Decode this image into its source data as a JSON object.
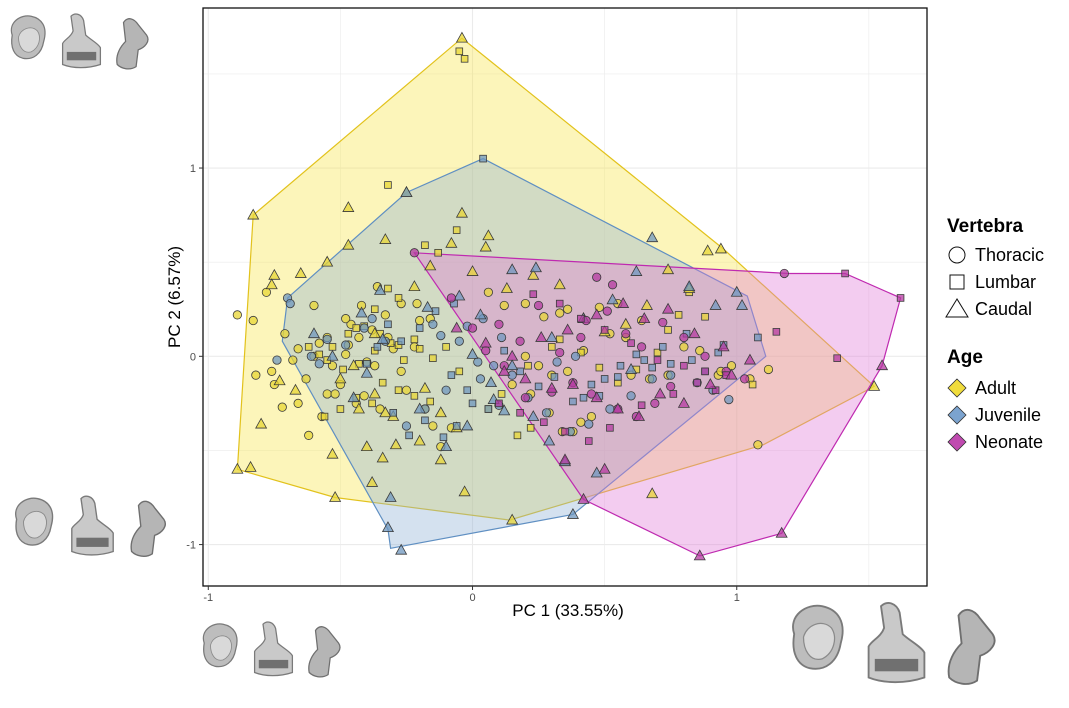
{
  "chart_data": {
    "type": "scatter",
    "xlabel": "PC 1 (33.55%)",
    "ylabel": "PC 2 (6.57%)",
    "xlim": [
      -1.02,
      1.72
    ],
    "ylim": [
      -1.22,
      1.85
    ],
    "x_ticks": [
      {
        "value": -1,
        "label": "-1"
      },
      {
        "value": 0,
        "label": "0"
      },
      {
        "value": 1,
        "label": "1"
      }
    ],
    "y_ticks": [
      {
        "value": -1,
        "label": "-1"
      },
      {
        "value": 0,
        "label": "0"
      },
      {
        "value": 1,
        "label": "1"
      }
    ],
    "grid": true,
    "legend_position": "right",
    "legends": [
      {
        "title": "Vertebra",
        "entries": [
          {
            "label": "Thoracic",
            "shape": "circle"
          },
          {
            "label": "Lumbar",
            "shape": "square"
          },
          {
            "label": "Caudal",
            "shape": "triangle"
          }
        ]
      },
      {
        "title": "Age",
        "entries": [
          {
            "label": "Adult",
            "shape": "diamond",
            "color": "#f0dc3c"
          },
          {
            "label": "Juvenile",
            "shape": "diamond",
            "color": "#7ba3cf"
          },
          {
            "label": "Neonate",
            "shape": "diamond",
            "color": "#c04ab0"
          }
        ]
      }
    ],
    "colors": {
      "Adult": {
        "fill": "#e8d534",
        "hull": "#f7e64a",
        "stroke": "#e2c21c"
      },
      "Juvenile": {
        "fill": "#6f97bf",
        "hull": "#8fb1d4",
        "stroke": "#5f8fc2"
      },
      "Neonate": {
        "fill": "#b43aa0",
        "hull": "#e07ad8",
        "stroke": "#bf2ab0"
      }
    },
    "hulls": {
      "Adult": [
        [
          -0.89,
          -0.6
        ],
        [
          -0.83,
          0.75
        ],
        [
          -0.04,
          1.69
        ],
        [
          0.95,
          0.57
        ],
        [
          1.52,
          -0.16
        ],
        [
          1.1,
          -0.47
        ],
        [
          0.14,
          -0.87
        ],
        [
          -0.52,
          -0.75
        ]
      ],
      "Juvenile": [
        [
          -0.31,
          -1.02
        ],
        [
          0.38,
          -0.84
        ],
        [
          1.11,
          0
        ],
        [
          1.04,
          0.32
        ],
        [
          0.04,
          1.05
        ],
        [
          -0.25,
          0.87
        ],
        [
          -0.7,
          0.31
        ],
        [
          -0.72,
          0.08
        ],
        [
          -0.32,
          -0.92
        ]
      ],
      "Neonate": [
        [
          -0.22,
          0.55
        ],
        [
          1.2,
          0.44
        ],
        [
          1.41,
          0.44
        ],
        [
          1.62,
          0.31
        ],
        [
          1.55,
          -0.05
        ],
        [
          1.17,
          -0.94
        ],
        [
          0.86,
          -1.06
        ],
        [
          0.42,
          -0.76
        ]
      ]
    },
    "series": [
      {
        "name": "Adult",
        "shape": "circle",
        "x": [
          -0.89,
          -0.83,
          -0.76,
          -0.82,
          -0.71,
          -0.75,
          -0.66,
          -0.58,
          -0.63,
          -0.55,
          -0.48,
          -0.52,
          -0.43,
          -0.47,
          -0.41,
          -0.37,
          -0.35,
          -0.3,
          -0.25,
          -0.22,
          -0.18,
          -0.15,
          -0.12,
          -0.08,
          -0.62,
          -0.57,
          -0.5,
          -0.44,
          -0.38,
          -0.33,
          -0.27,
          -0.2,
          -0.16,
          -0.66,
          -0.6,
          -0.53,
          -0.46,
          -0.4,
          -0.32,
          -0.27,
          -0.21,
          -0.72,
          -0.68,
          -0.6,
          -0.55,
          -0.48,
          -0.42,
          -0.36,
          -0.78,
          0.06,
          0.12,
          0.2,
          0.25,
          0.3,
          0.36,
          0.42,
          0.48,
          0.55,
          0.6,
          0.67,
          0.74,
          0.8,
          0.86,
          0.93,
          0.98,
          1.05,
          1.12,
          1.08,
          0.94,
          0.15,
          0.22,
          0.29,
          0.34,
          0.41,
          0.38,
          0.45,
          0.52,
          0.58,
          0.64,
          0.33,
          0.27,
          0.2,
          0.36
        ],
        "y": [
          0.22,
          0.19,
          -0.08,
          -0.1,
          0.12,
          -0.15,
          -0.25,
          0.07,
          -0.12,
          -0.2,
          0.01,
          -0.2,
          0.1,
          0.06,
          -0.21,
          -0.05,
          -0.28,
          0.04,
          -0.18,
          0.05,
          -0.28,
          -0.37,
          -0.48,
          -0.38,
          -0.42,
          -0.32,
          -0.15,
          -0.25,
          0.14,
          0.22,
          0.28,
          0.19,
          0.2,
          0.04,
          0.0,
          -0.05,
          0.17,
          -0.03,
          0.1,
          -0.08,
          0.28,
          -0.27,
          -0.02,
          0.27,
          0.1,
          0.2,
          0.27,
          0.37,
          0.34,
          0.34,
          0.27,
          0.0,
          -0.05,
          -0.1,
          -0.08,
          0.03,
          0.26,
          0.28,
          -0.1,
          -0.12,
          -0.1,
          0.05,
          0.03,
          -0.1,
          -0.05,
          -0.12,
          -0.07,
          -0.47,
          -0.08,
          -0.15,
          -0.2,
          -0.3,
          -0.4,
          -0.35,
          -0.4,
          -0.32,
          0.12,
          0.1,
          0.19,
          0.23,
          0.21,
          0.28,
          0.25
        ]
      },
      {
        "name": "Adult",
        "shape": "square",
        "x": [
          -0.05,
          -0.03,
          -0.32,
          -0.18,
          -0.13,
          -0.06,
          -0.22,
          -0.28,
          -0.35,
          -0.41,
          -0.47,
          -0.53,
          -0.58,
          -0.62,
          -0.55,
          -0.49,
          -0.43,
          -0.37,
          -0.31,
          -0.26,
          -0.2,
          -0.15,
          -0.1,
          -0.05,
          -0.34,
          -0.28,
          -0.22,
          -0.16,
          -0.38,
          -0.44,
          -0.5,
          -0.56,
          0.21,
          0.3,
          0.33,
          0.41,
          0.48,
          0.55,
          0.62,
          0.7,
          0.74,
          0.78,
          0.82,
          0.88,
          1.06,
          0.22,
          0.17,
          0.11,
          0.06,
          -0.28,
          -0.32,
          -0.37,
          -0.44
        ],
        "y": [
          1.62,
          1.58,
          0.91,
          0.59,
          0.55,
          0.67,
          0.09,
          0.06,
          0.12,
          0.16,
          0.12,
          0.05,
          0.01,
          0.05,
          -0.02,
          -0.07,
          -0.04,
          0.03,
          0.07,
          -0.02,
          0.04,
          -0.01,
          0.05,
          -0.08,
          -0.14,
          -0.18,
          -0.21,
          -0.24,
          -0.25,
          -0.22,
          -0.28,
          -0.32,
          -0.05,
          0.05,
          0.09,
          0.02,
          -0.06,
          -0.14,
          -0.07,
          0.02,
          0.14,
          0.22,
          0.34,
          0.21,
          -0.15,
          -0.38,
          -0.42,
          -0.2,
          -0.28,
          0.31,
          0.36,
          0.25,
          0.15
        ]
      },
      {
        "name": "Adult",
        "shape": "triangle",
        "x": [
          -0.04,
          -0.83,
          -0.47,
          -0.33,
          -0.25,
          -0.47,
          -0.55,
          -0.65,
          -0.75,
          -0.76,
          -0.73,
          -0.67,
          -0.8,
          -0.89,
          -0.84,
          -0.53,
          -0.52,
          -0.38,
          -0.4,
          -0.34,
          -0.29,
          -0.33,
          -0.37,
          -0.43,
          -0.5,
          -0.45,
          -0.37,
          -0.22,
          -0.16,
          -0.08,
          -0.04,
          0.05,
          0.06,
          0.0,
          0.13,
          0.23,
          0.33,
          0.42,
          0.5,
          0.58,
          0.66,
          0.68,
          0.74,
          0.82,
          0.89,
          0.94,
          1.52,
          0.15,
          -0.03,
          -0.12,
          -0.18,
          -0.3,
          -0.2,
          -0.12,
          -0.06
        ],
        "y": [
          1.69,
          0.75,
          0.79,
          0.62,
          0.87,
          0.59,
          0.5,
          0.44,
          0.43,
          0.38,
          -0.13,
          -0.18,
          -0.36,
          -0.6,
          -0.59,
          -0.52,
          -0.75,
          -0.67,
          -0.48,
          -0.54,
          -0.47,
          -0.3,
          -0.2,
          -0.28,
          -0.12,
          -0.05,
          0.12,
          0.37,
          0.48,
          0.6,
          0.76,
          0.58,
          0.64,
          0.45,
          0.36,
          0.43,
          0.38,
          0.2,
          0.13,
          0.17,
          0.27,
          -0.73,
          0.46,
          0.36,
          0.56,
          0.57,
          -0.16,
          -0.87,
          -0.72,
          -0.3,
          -0.17,
          -0.32,
          -0.45,
          -0.55,
          -0.38
        ]
      },
      {
        "name": "Juvenile",
        "shape": "circle",
        "x": [
          -0.7,
          -0.69,
          -0.74,
          -0.61,
          -0.58,
          -0.55,
          -0.48,
          -0.41,
          -0.38,
          -0.33,
          -0.15,
          -0.12,
          -0.05,
          0.02,
          0.08,
          0.15,
          0.21,
          0.28,
          -0.25,
          -0.18,
          -0.1,
          0.03,
          0.1,
          0.37,
          0.44,
          0.52,
          0.6,
          0.68,
          0.75,
          0.85,
          0.91,
          0.97,
          -0.02,
          0.04,
          0.11,
          0.32,
          0.39
        ],
        "y": [
          0.31,
          0.28,
          -0.02,
          0.0,
          -0.04,
          0.09,
          0.06,
          0.15,
          0.2,
          0.08,
          0.17,
          0.11,
          0.08,
          -0.03,
          -0.05,
          -0.1,
          -0.22,
          -0.3,
          -0.37,
          -0.28,
          -0.18,
          -0.12,
          -0.26,
          -0.4,
          -0.36,
          -0.28,
          -0.21,
          -0.12,
          -0.1,
          -0.14,
          -0.18,
          -0.23,
          0.16,
          0.2,
          0.1,
          -0.03,
          0.0
        ]
      },
      {
        "name": "Juvenile",
        "shape": "square",
        "x": [
          0.04,
          -0.07,
          -0.14,
          -0.2,
          -0.27,
          -0.32,
          -0.36,
          -0.4,
          -0.08,
          -0.02,
          0.06,
          -0.18,
          -0.24,
          -0.3,
          -0.11,
          -0.06,
          0.0,
          0.12,
          0.18,
          0.25,
          0.31,
          0.38,
          0.45,
          0.5,
          0.56,
          0.62,
          0.68,
          0.75,
          0.83,
          0.95,
          1.08,
          0.93,
          0.88,
          0.81,
          0.72,
          0.65,
          0.55,
          0.48,
          0.42
        ],
        "y": [
          1.05,
          0.28,
          0.24,
          0.15,
          0.08,
          0.17,
          0.05,
          -0.04,
          -0.1,
          -0.18,
          -0.28,
          -0.34,
          -0.42,
          -0.3,
          -0.43,
          -0.37,
          -0.25,
          0.03,
          -0.08,
          -0.16,
          -0.11,
          -0.24,
          -0.15,
          -0.12,
          -0.05,
          0.01,
          -0.06,
          -0.04,
          -0.02,
          0.06,
          0.1,
          0.02,
          -0.08,
          0.12,
          0.05,
          -0.02,
          -0.11,
          -0.21,
          -0.22
        ]
      },
      {
        "name": "Juvenile",
        "shape": "triangle",
        "x": [
          -0.25,
          -0.31,
          -0.32,
          -0.27,
          -0.6,
          -0.53,
          -0.42,
          -0.35,
          -0.17,
          -0.05,
          0.03,
          0.15,
          0.24,
          0.3,
          0.42,
          0.53,
          0.62,
          0.68,
          0.38,
          0.82,
          0.92,
          1.0,
          1.02,
          0.6,
          0.15,
          0.08,
          -0.02,
          -0.1,
          -0.2,
          -0.34,
          -0.4,
          -0.45,
          0.0,
          0.07,
          0.12,
          0.23,
          0.29,
          0.35,
          0.47
        ],
        "y": [
          0.87,
          -0.75,
          -0.91,
          -1.03,
          0.12,
          0.0,
          0.23,
          0.35,
          0.26,
          0.32,
          0.22,
          0.46,
          0.47,
          0.1,
          0.2,
          0.3,
          0.45,
          0.63,
          -0.84,
          0.37,
          0.27,
          0.34,
          0.27,
          -0.07,
          -0.05,
          -0.23,
          -0.37,
          -0.48,
          -0.28,
          0.09,
          -0.09,
          -0.22,
          0.01,
          -0.14,
          -0.29,
          -0.32,
          -0.45,
          -0.56,
          -0.62
        ]
      },
      {
        "name": "Neonate",
        "shape": "circle",
        "x": [
          -0.22,
          -0.08,
          0.0,
          0.1,
          0.18,
          0.25,
          0.33,
          0.43,
          0.51,
          0.58,
          0.64,
          0.72,
          0.8,
          0.88,
          0.96,
          1.03,
          1.18,
          0.3,
          0.38,
          0.45,
          0.55,
          0.62,
          0.69,
          0.75,
          0.2,
          0.12,
          0.05,
          0.47,
          0.53,
          0.41
        ],
        "y": [
          0.55,
          0.31,
          0.15,
          0.17,
          0.08,
          0.27,
          0.02,
          0.19,
          0.24,
          0.12,
          0.05,
          0.18,
          0.1,
          0.0,
          -0.08,
          -0.12,
          0.44,
          -0.19,
          -0.14,
          -0.2,
          -0.28,
          -0.32,
          -0.25,
          -0.16,
          -0.22,
          -0.05,
          0.03,
          0.42,
          0.38,
          0.1
        ]
      },
      {
        "name": "Neonate",
        "shape": "square",
        "x": [
          1.41,
          1.62,
          1.38,
          1.15,
          0.23,
          0.33,
          0.41,
          0.5,
          0.6,
          0.7,
          0.8,
          0.88,
          0.96,
          0.1,
          0.18,
          0.27,
          0.35,
          0.44,
          0.52,
          0.64,
          0.76,
          0.85,
          0.92
        ],
        "y": [
          0.44,
          0.31,
          -0.01,
          0.13,
          0.33,
          0.28,
          0.2,
          0.14,
          0.07,
          -0.02,
          -0.05,
          -0.08,
          -0.1,
          -0.25,
          -0.3,
          -0.35,
          -0.4,
          -0.45,
          -0.38,
          -0.26,
          -0.2,
          -0.14,
          -0.18
        ]
      },
      {
        "name": "Neonate",
        "shape": "triangle",
        "x": [
          1.55,
          1.17,
          0.86,
          0.42,
          -0.06,
          0.05,
          0.15,
          0.26,
          0.36,
          0.47,
          0.57,
          0.65,
          0.74,
          0.84,
          0.95,
          1.05,
          0.12,
          0.2,
          0.3,
          0.38,
          0.47,
          0.55,
          0.63,
          0.71,
          0.8,
          0.9,
          0.98,
          0.35,
          0.5
        ],
        "y": [
          -0.05,
          -0.94,
          -1.06,
          -0.76,
          0.15,
          0.07,
          0.0,
          0.1,
          0.14,
          0.22,
          0.28,
          0.2,
          0.25,
          0.12,
          0.05,
          -0.02,
          -0.08,
          -0.12,
          -0.17,
          -0.15,
          -0.22,
          -0.28,
          -0.32,
          -0.2,
          -0.25,
          -0.15,
          -0.1,
          -0.55,
          -0.6
        ]
      }
    ]
  }
}
